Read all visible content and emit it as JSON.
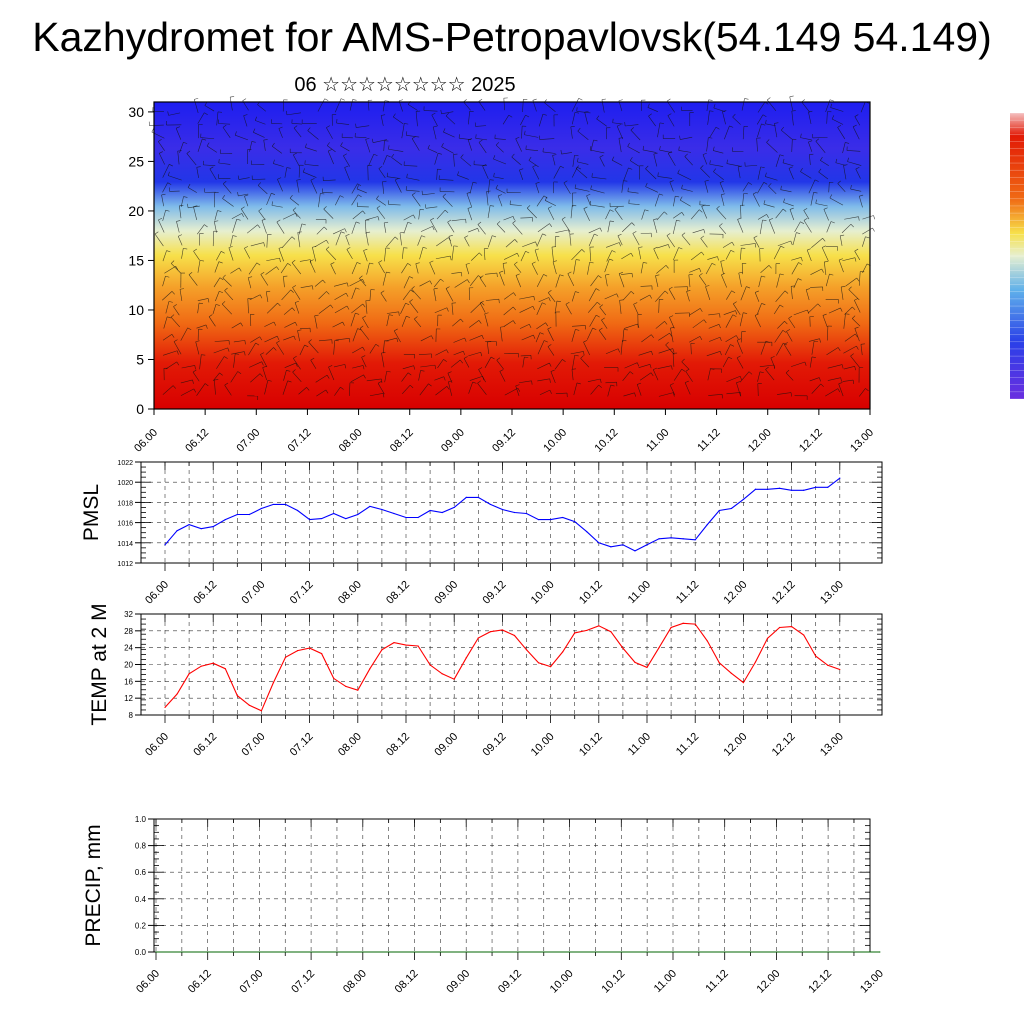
{
  "header": {
    "title": "Kazhydromet for AMS-Petropavlovsk(54.149 54.149)",
    "subtitle": "06 ☆☆☆☆☆☆☆☆ 2025"
  },
  "colors": {
    "pmsl_line": "#0000ff",
    "temp_line": "#ff0000",
    "precip_line": "#006400",
    "cross_section_top": "#2020e8",
    "cross_section_mid": "#f5e050",
    "cross_section_bottom": "#d80000"
  },
  "chart_data": [
    {
      "type": "heatmap",
      "name": "cross-section",
      "ylim": [
        0,
        31
      ],
      "yticks": [
        "0",
        "5",
        "10",
        "15",
        "20",
        "25",
        "30"
      ],
      "xticks": [
        "06.00",
        "06.12",
        "07.00",
        "07.12",
        "08.00",
        "08.12",
        "09.00",
        "09.12",
        "10.00",
        "10.12",
        "11.00",
        "11.12",
        "12.00",
        "12.12",
        "13.00"
      ],
      "colorbar": true,
      "wind_barbs": true
    },
    {
      "type": "line",
      "name": "pmsl",
      "ylabel": "PMSL",
      "ylim": [
        1012,
        1022
      ],
      "yticks": [
        "1012",
        "1014",
        "1016",
        "1018",
        "1020",
        "1022"
      ],
      "xticks": [
        "06.00",
        "06.12",
        "07.00",
        "07.12",
        "08.00",
        "08.12",
        "09.00",
        "09.12",
        "10.00",
        "10.12",
        "11.00",
        "11.12",
        "12.00",
        "12.12",
        "13.00"
      ],
      "x_hours": [
        0,
        3,
        6,
        9,
        12,
        15,
        18,
        21,
        24,
        27,
        30,
        33,
        36,
        39,
        42,
        45,
        48,
        51,
        54,
        57,
        60,
        63,
        66,
        69,
        72,
        75,
        78,
        81,
        84,
        87,
        90,
        93,
        96,
        99,
        102,
        105,
        108,
        111,
        114,
        117,
        120,
        123,
        126,
        129,
        132,
        135,
        138,
        141,
        144,
        147,
        150,
        153,
        156,
        159,
        162,
        165,
        168
      ],
      "values": [
        1013.8,
        1015.2,
        1015.8,
        1015.4,
        1015.6,
        1016.3,
        1016.8,
        1016.8,
        1017.4,
        1017.8,
        1017.8,
        1017.2,
        1016.3,
        1016.4,
        1016.9,
        1016.4,
        1016.8,
        1017.6,
        1017.3,
        1016.9,
        1016.5,
        1016.5,
        1017.2,
        1017.0,
        1017.5,
        1018.5,
        1018.5,
        1017.8,
        1017.3,
        1017.0,
        1016.9,
        1016.3,
        1016.3,
        1016.5,
        1016.1,
        1015.1,
        1014.0,
        1013.6,
        1013.8,
        1013.2,
        1013.8,
        1014.4,
        1014.5,
        1014.4,
        1014.3,
        1015.8,
        1017.2,
        1017.4,
        1018.3,
        1019.3,
        1019.3,
        1019.4,
        1019.2,
        1019.2,
        1019.5,
        1019.5,
        1020.4
      ]
    },
    {
      "type": "line",
      "name": "temp",
      "ylabel": "TEMP at 2 M",
      "ylim": [
        8,
        32
      ],
      "yticks": [
        "8",
        "12",
        "16",
        "20",
        "24",
        "28",
        "32"
      ],
      "xticks": [
        "06.00",
        "06.12",
        "07.00",
        "07.12",
        "08.00",
        "08.12",
        "09.00",
        "09.12",
        "10.00",
        "10.12",
        "11.00",
        "11.12",
        "12.00",
        "12.12",
        "13.00"
      ],
      "x_hours": [
        0,
        3,
        6,
        9,
        12,
        15,
        18,
        21,
        24,
        27,
        30,
        33,
        36,
        39,
        42,
        45,
        48,
        51,
        54,
        57,
        60,
        63,
        66,
        69,
        72,
        75,
        78,
        81,
        84,
        87,
        90,
        93,
        96,
        99,
        102,
        105,
        108,
        111,
        114,
        117,
        120,
        123,
        126,
        129,
        132,
        135,
        138,
        141,
        144,
        147,
        150,
        153,
        156,
        159,
        162,
        165,
        168
      ],
      "values": [
        9.8,
        13.0,
        17.8,
        19.6,
        20.3,
        19.0,
        12.6,
        10.3,
        9.0,
        15.7,
        21.7,
        23.3,
        23.9,
        22.6,
        16.7,
        14.8,
        13.9,
        19.0,
        23.5,
        25.2,
        24.6,
        24.4,
        19.9,
        17.8,
        16.5,
        21.6,
        26.3,
        27.8,
        28.2,
        26.9,
        23.5,
        20.4,
        19.5,
        23.0,
        27.5,
        28.1,
        29.2,
        27.8,
        23.9,
        20.5,
        19.3,
        24.0,
        28.8,
        29.8,
        29.6,
        25.6,
        20.4,
        17.9,
        15.7,
        20.6,
        26.2,
        28.8,
        29.0,
        27.0,
        22.0,
        19.8,
        18.8
      ]
    },
    {
      "type": "line",
      "name": "precip",
      "ylabel": "PRECIP, mm",
      "ylim": [
        0,
        1
      ],
      "yticks": [
        "0.0",
        "0.2",
        "0.4",
        "0.6",
        "0.8",
        "1.0"
      ],
      "xticks": [
        "06.00",
        "06.12",
        "07.00",
        "07.12",
        "08.00",
        "08.12",
        "09.00",
        "09.12",
        "10.00",
        "10.12",
        "11.00",
        "11.12",
        "12.00",
        "12.12",
        "13.00"
      ],
      "x_hours": [
        0,
        168
      ],
      "values": [
        0,
        0
      ]
    }
  ]
}
